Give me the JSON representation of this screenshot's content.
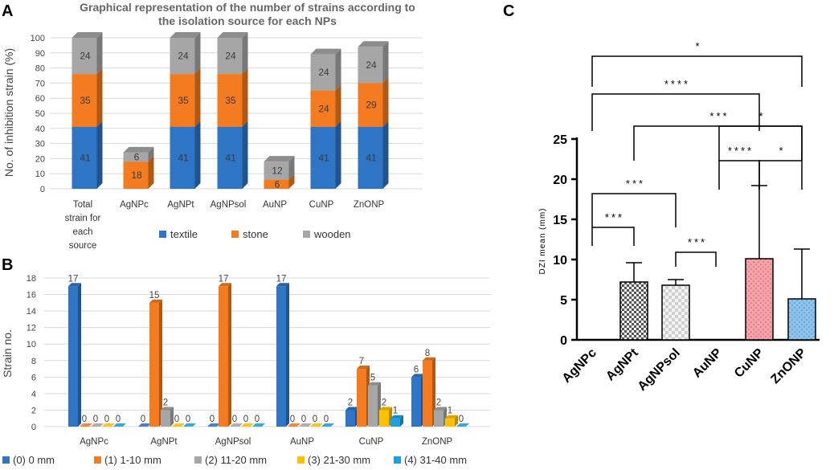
{
  "chart_data": [
    {
      "panel": "A",
      "type": "bar",
      "stacked": true,
      "title": "Graphical representation of the number of strains according to the isolation source for each NPs",
      "title_lines": [
        "Graphical representation of the number of strains according to",
        "the isolation source for each NPs"
      ],
      "ylabel": "No. of inhibition strain (%)",
      "ylim": [
        0,
        100
      ],
      "yticks": [
        0,
        10,
        20,
        30,
        40,
        50,
        60,
        70,
        80,
        90,
        100
      ],
      "categories": [
        "Total strain for each source",
        "AgNPc",
        "AgNPt",
        "AgNPsol",
        "AuNP",
        "CuNP",
        "ZnONP"
      ],
      "category_lines": [
        [
          "Total",
          "strain for",
          "each",
          "source"
        ],
        [
          "AgNPc"
        ],
        [
          "AgNPt"
        ],
        [
          "AgNPsol"
        ],
        [
          "AuNP"
        ],
        [
          "CuNP"
        ],
        [
          "ZnONP"
        ]
      ],
      "series": [
        {
          "name": "textile",
          "color": "#2e75c6",
          "values": [
            41,
            0,
            41,
            41,
            0,
            41,
            41
          ],
          "labels": [
            "41",
            "",
            "41",
            "41",
            "",
            "41",
            "41"
          ]
        },
        {
          "name": "stone",
          "color": "#f47b20",
          "values": [
            35,
            18,
            35,
            35,
            6,
            24,
            29
          ],
          "labels": [
            "35",
            "18",
            "35",
            "35",
            "6",
            "24",
            "29"
          ]
        },
        {
          "name": "wooden",
          "color": "#a6a6a6",
          "values": [
            24,
            6,
            24,
            24,
            12,
            24,
            24
          ],
          "labels": [
            "24",
            "6",
            "24",
            "24",
            "12",
            "24",
            "24"
          ]
        }
      ]
    },
    {
      "panel": "B",
      "type": "bar",
      "ylabel": "Strain no.",
      "ylim": [
        0,
        18
      ],
      "yticks": [
        0,
        2,
        4,
        6,
        8,
        10,
        12,
        14,
        16,
        18
      ],
      "categories": [
        "AgNPc",
        "AgNPt",
        "AgNPsol",
        "AuNP",
        "CuNP",
        "ZnONP"
      ],
      "series": [
        {
          "name": "(0) 0 mm",
          "color": "#2e75c6",
          "values": [
            17,
            0,
            0,
            17,
            2,
            6
          ]
        },
        {
          "name": "(1) 1-10 mm",
          "color": "#f47b20",
          "values": [
            0,
            15,
            17,
            0,
            7,
            8
          ]
        },
        {
          "name": "(2) 11-20 mm",
          "color": "#a6a6a6",
          "values": [
            0,
            2,
            0,
            0,
            5,
            2
          ]
        },
        {
          "name": "(3) 21-30 mm",
          "color": "#ffc000",
          "values": [
            0,
            0,
            0,
            0,
            2,
            1
          ]
        },
        {
          "name": "(4) 31-40 mm",
          "color": "#1ba1e2",
          "values": [
            0,
            0,
            0,
            0,
            1,
            0
          ]
        }
      ],
      "labels": [
        [
          "17",
          "0",
          "0",
          "0",
          "0"
        ],
        [
          "0",
          "15",
          "2",
          "0",
          "0"
        ],
        [
          "0",
          "17",
          "0",
          "0",
          "0"
        ],
        [
          "17",
          "0",
          "0",
          "0",
          "0"
        ],
        [
          "2",
          "7",
          "5",
          "2",
          "1"
        ],
        [
          "6",
          "8",
          "2",
          "1",
          "0"
        ]
      ]
    },
    {
      "panel": "C",
      "type": "bar",
      "ylabel": "DZI mean (mm)",
      "ylim": [
        0,
        25
      ],
      "yticks": [
        0,
        5,
        10,
        15,
        20,
        25
      ],
      "categories": [
        "AgNPc",
        "AgNPt",
        "AgNPsol",
        "AuNP",
        "CuNP",
        "ZnONP"
      ],
      "values": [
        0,
        7.2,
        6.8,
        0,
        10.1,
        5.1
      ],
      "errors": [
        0,
        2.4,
        0.7,
        0,
        9.1,
        6.2
      ],
      "significance": [
        {
          "from": "AgNPc",
          "to": "ZnONP",
          "stars": "*"
        },
        {
          "from": "AgNPc",
          "to": "CuNP",
          "stars": "****"
        },
        {
          "from": "AgNPt",
          "to": "ZnONP",
          "stars": "***"
        },
        {
          "from": "AuNP",
          "to": "ZnONP",
          "stars": "*"
        },
        {
          "from": "AgNPc",
          "to": "AgNPsol",
          "stars": "***"
        },
        {
          "from": "AuNP",
          "to": "CuNP",
          "stars": "****"
        },
        {
          "from": "CuNP",
          "to": "ZnONP",
          "stars": "*"
        },
        {
          "from": "AgNPsol",
          "to": "AuNP",
          "stars": "***"
        },
        {
          "from": "AgNPc",
          "to": "AgNPt",
          "stars": "***"
        }
      ]
    }
  ],
  "panels": {
    "a": "A",
    "b": "B",
    "c": "C"
  }
}
